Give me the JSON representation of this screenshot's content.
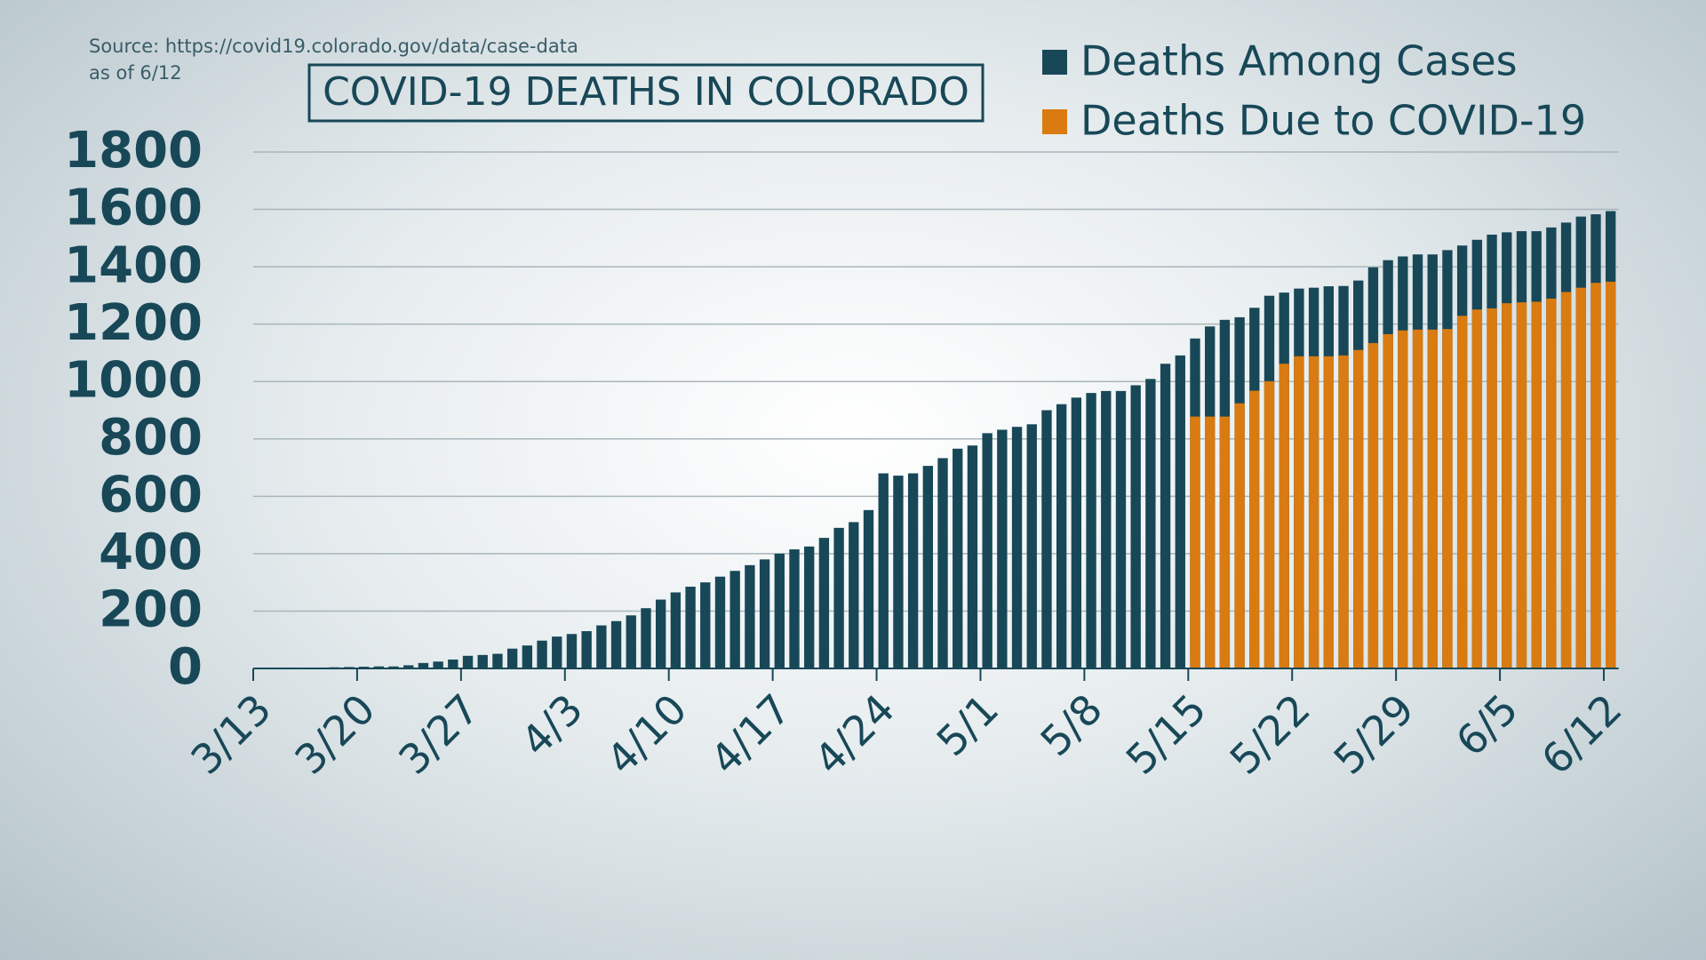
{
  "chart_data": {
    "type": "bar",
    "title": "COVID-19 DEATHS IN COLORADO",
    "source": "Source: https://covid19.colorado.gov/data/case-data",
    "date_note": "as of 6/12",
    "categories": [
      "3/13",
      null,
      null,
      null,
      null,
      null,
      null,
      "3/20",
      null,
      null,
      null,
      null,
      null,
      null,
      "3/27",
      null,
      null,
      null,
      null,
      null,
      null,
      "4/3",
      null,
      null,
      null,
      null,
      null,
      null,
      "4/10",
      null,
      null,
      null,
      null,
      null,
      null,
      "4/17",
      null,
      null,
      null,
      null,
      null,
      null,
      "4/24",
      null,
      null,
      null,
      null,
      null,
      null,
      "5/1",
      null,
      null,
      null,
      null,
      null,
      null,
      "5/8",
      null,
      null,
      null,
      null,
      null,
      null,
      "5/15",
      null,
      null,
      null,
      null,
      null,
      null,
      "5/22",
      null,
      null,
      null,
      null,
      null,
      null,
      "5/29",
      null,
      null,
      null,
      null,
      null,
      null,
      "6/5",
      null,
      null,
      null,
      null,
      null,
      null,
      "6/12"
    ],
    "series": [
      {
        "name": "Deaths Among Cases",
        "color": "#184858",
        "values": [
          1,
          2,
          2,
          2,
          3,
          4,
          5,
          6,
          7,
          7,
          11,
          19,
          24,
          31,
          44,
          47,
          51,
          69,
          80,
          97,
          111,
          120,
          130,
          150,
          165,
          185,
          210,
          240,
          265,
          285,
          300,
          320,
          340,
          360,
          380,
          400,
          415,
          425,
          455,
          490,
          510,
          552,
          680,
          672,
          680,
          706,
          733,
          766,
          777,
          820,
          832,
          842,
          851,
          900,
          921,
          944,
          960,
          967,
          967,
          987,
          1009,
          1062,
          1091,
          1150,
          1192,
          1215,
          1224,
          1257,
          1299,
          1310,
          1324,
          1327,
          1332,
          1333,
          1352,
          1398,
          1423,
          1436,
          1443,
          1443,
          1458,
          1474,
          1494,
          1512,
          1520,
          1524,
          1524,
          1537,
          1554,
          1575,
          1583,
          1594
        ]
      },
      {
        "name": "Deaths Due to COVID-19",
        "color": "#d97b10",
        "values": [
          null,
          null,
          null,
          null,
          null,
          null,
          null,
          null,
          null,
          null,
          null,
          null,
          null,
          null,
          null,
          null,
          null,
          null,
          null,
          null,
          null,
          null,
          null,
          null,
          null,
          null,
          null,
          null,
          null,
          null,
          null,
          null,
          null,
          null,
          null,
          null,
          null,
          null,
          null,
          null,
          null,
          null,
          null,
          null,
          null,
          null,
          null,
          null,
          null,
          null,
          null,
          null,
          null,
          null,
          null,
          null,
          null,
          null,
          null,
          null,
          null,
          null,
          null,
          878,
          878,
          878,
          924,
          968,
          1001,
          1062,
          1088,
          1088,
          1088,
          1091,
          1110,
          1134,
          1165,
          1178,
          1181,
          1181,
          1183,
          1229,
          1251,
          1255,
          1273,
          1276,
          1278,
          1289,
          1312,
          1327,
          1344,
          1348
        ]
      }
    ],
    "ylim": [
      0,
      1800
    ],
    "yticks": [
      0,
      200,
      400,
      600,
      800,
      1000,
      1200,
      1400,
      1600,
      1800
    ],
    "grid": true,
    "legend": "top-right"
  }
}
